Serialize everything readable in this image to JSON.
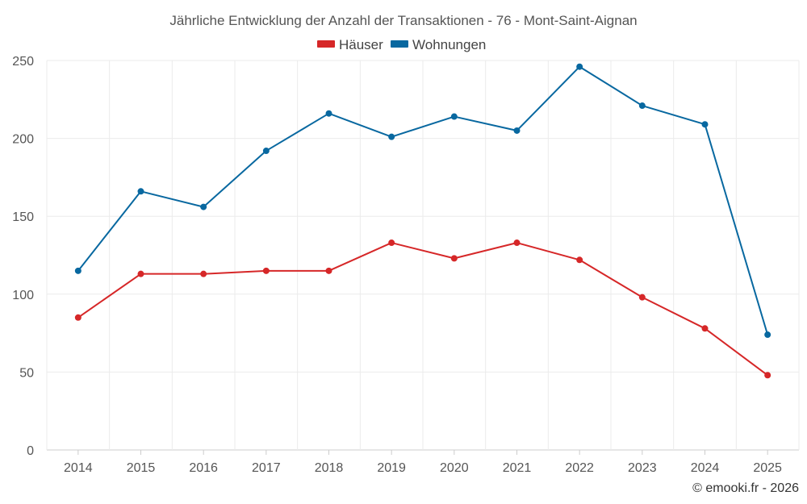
{
  "chart_data": {
    "type": "line",
    "title": "Jährliche Entwicklung der Anzahl der Transaktionen - 76 - Mont-Saint-Aignan",
    "categories": [
      "2014",
      "2015",
      "2016",
      "2017",
      "2018",
      "2019",
      "2020",
      "2021",
      "2022",
      "2023",
      "2024",
      "2025"
    ],
    "series": [
      {
        "name": "Häuser",
        "color": "#d62728",
        "values": [
          85,
          113,
          113,
          115,
          115,
          133,
          123,
          133,
          122,
          98,
          78,
          48
        ]
      },
      {
        "name": "Wohnungen",
        "color": "#0868a0",
        "values": [
          115,
          166,
          156,
          192,
          216,
          201,
          214,
          205,
          246,
          221,
          209,
          74
        ]
      }
    ],
    "ylim": [
      0,
      250
    ],
    "yticks": [
      0,
      50,
      100,
      150,
      200,
      250
    ],
    "xlabel": "",
    "ylabel": "",
    "grid": true,
    "legend": "top-center"
  },
  "credit": "© emooki.fr - 2026"
}
